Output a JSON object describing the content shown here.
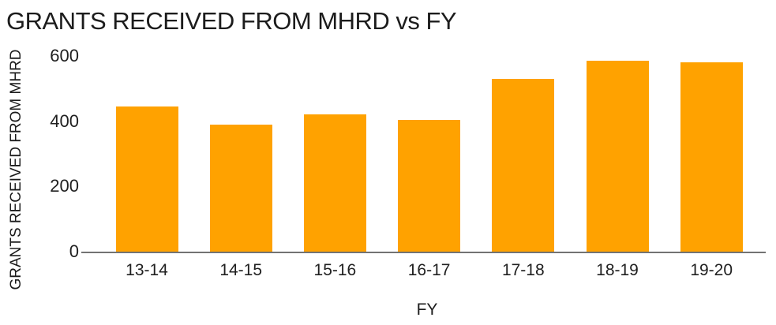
{
  "chart_data": {
    "type": "bar",
    "title": "GRANTS RECEIVED FROM MHRD vs FY",
    "xlabel": "FY",
    "ylabel": "GRANTS RECEIVED FROM MHRD",
    "categories": [
      "13-14",
      "14-15",
      "15-16",
      "16-17",
      "17-18",
      "18-19",
      "19-20"
    ],
    "values": [
      445,
      390,
      420,
      405,
      530,
      585,
      580
    ],
    "ylim": [
      0,
      600
    ],
    "yticks": [
      0,
      200,
      400,
      600
    ],
    "grid": false,
    "legend": false,
    "colors": {
      "bar": "#ffa200",
      "axis_line": "#737373",
      "text": "#1c1c1c",
      "background": "#ffffff"
    }
  }
}
